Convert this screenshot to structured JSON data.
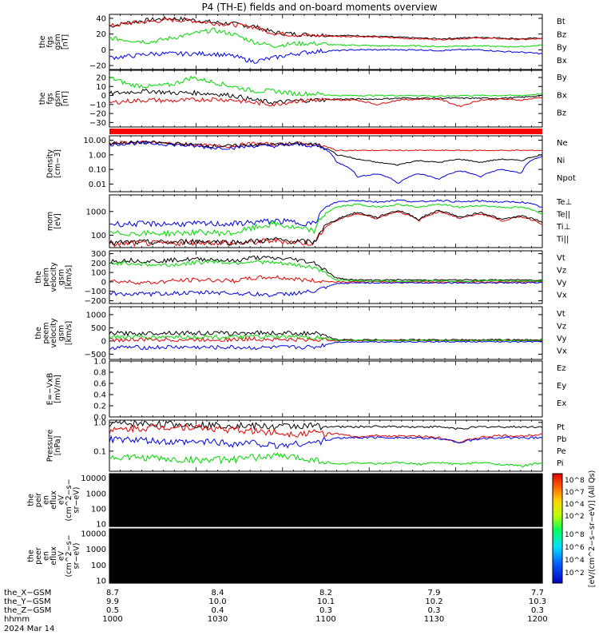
{
  "title": "P4 (TH-E) fields and on-board moments overview",
  "colors": {
    "black": "#000000",
    "red": "#e00000",
    "green": "#00d800",
    "blue": "#0000e0",
    "redbar": "#ff0000"
  },
  "chart_data": [
    {
      "type": "line",
      "panel": "fgs_gsm",
      "ylabel": [
        "the",
        "fgs",
        "gsm",
        "[nT]"
      ],
      "ticks": [
        "40",
        "20",
        "0",
        "−20"
      ],
      "ylim": [
        -25,
        45
      ],
      "series": [
        {
          "name": "Bt",
          "color": "black",
          "values": [
            30,
            35,
            38,
            40,
            38,
            35,
            33,
            30,
            22,
            20,
            19,
            18,
            18,
            17,
            16,
            15,
            14,
            15,
            16,
            15,
            14,
            15
          ]
        },
        {
          "name": "Bz",
          "color": "red",
          "values": [
            30,
            34,
            36,
            38,
            37,
            34,
            32,
            29,
            21,
            19,
            18,
            17,
            17,
            16,
            15,
            14,
            13,
            14,
            15,
            14,
            13,
            14
          ]
        },
        {
          "name": "By",
          "color": "green",
          "values": [
            15,
            12,
            10,
            15,
            20,
            25,
            20,
            10,
            5,
            8,
            8,
            6,
            6,
            5,
            5,
            5,
            4,
            5,
            5,
            4,
            4,
            6
          ]
        },
        {
          "name": "Bx",
          "color": "blue",
          "values": [
            -10,
            -8,
            -5,
            -5,
            -5,
            -5,
            -8,
            -15,
            -10,
            -5,
            -2,
            -1,
            0,
            0,
            0,
            0,
            -1,
            0,
            0,
            -2,
            -3,
            -5
          ]
        }
      ]
    },
    {
      "type": "line",
      "panel": "fgs_gsm_2",
      "ylabel": [
        "the",
        "fgs",
        "gsm",
        "[nT]"
      ],
      "ticks": [
        "20",
        "10",
        "0",
        "−10",
        "−20",
        "−30"
      ],
      "ylim": [
        -35,
        28
      ],
      "series": [
        {
          "name": "By",
          "color": "green",
          "values": [
            20,
            12,
            10,
            12,
            20,
            15,
            10,
            5,
            5,
            2,
            2,
            0,
            0,
            0,
            0,
            0,
            -1,
            0,
            0,
            0,
            0,
            2
          ]
        },
        {
          "name": "Bx",
          "color": "black",
          "values": [
            2,
            4,
            5,
            3,
            3,
            2,
            0,
            -5,
            -8,
            -6,
            -5,
            -4,
            -4,
            -4,
            -3,
            -3,
            -3,
            -3,
            -3,
            -3,
            -2,
            0
          ]
        },
        {
          "name": "Bz",
          "color": "red",
          "values": [
            -8,
            -6,
            -5,
            -6,
            -5,
            -4,
            -5,
            -8,
            -10,
            -6,
            -5,
            -5,
            -5,
            -10,
            -5,
            -4,
            -4,
            -12,
            -5,
            -4,
            -5,
            -2
          ]
        }
      ]
    },
    {
      "type": "line",
      "panel": "density",
      "ylabel": [
        "Density",
        "[cm−3]"
      ],
      "ticks": [
        "10.00",
        "1.00",
        "0.10",
        "0.01"
      ],
      "ylim": [
        0.003,
        20
      ],
      "scale": "log",
      "series": [
        {
          "name": "Ne",
          "color": "red",
          "values": [
            6,
            7,
            7,
            6,
            5,
            4,
            4,
            6,
            5,
            6,
            5,
            2,
            2,
            2,
            2,
            2,
            2,
            2,
            2,
            2,
            2,
            2
          ]
        },
        {
          "name": "Ni",
          "color": "black",
          "values": [
            6,
            7,
            7,
            6,
            5,
            4,
            4,
            5,
            5,
            6,
            5,
            1,
            0.5,
            0.3,
            0.2,
            0.4,
            0.3,
            0.5,
            0.3,
            0.5,
            0.4,
            1
          ]
        },
        {
          "name": "Npot",
          "color": "blue",
          "values": [
            5,
            6,
            6,
            5,
            4,
            3,
            3,
            4,
            4,
            5,
            4,
            0.3,
            0.03,
            0.05,
            0.01,
            0.05,
            0.02,
            0.08,
            0.03,
            0.1,
            0.05,
            0.8
          ]
        }
      ]
    },
    {
      "type": "line",
      "panel": "temperature",
      "ylabel": [
        "mom",
        "[eV]"
      ],
      "ticks": [
        "1000",
        "100"
      ],
      "ylim": [
        30,
        5000
      ],
      "scale": "log",
      "series": [
        {
          "name": "Te⊥",
          "color": "red",
          "values": [
            40,
            45,
            45,
            45,
            50,
            50,
            45,
            50,
            60,
            50,
            45,
            400,
            800,
            500,
            1000,
            400,
            1000,
            500,
            800,
            400,
            600,
            300
          ]
        },
        {
          "name": "Te||",
          "color": "black",
          "values": [
            45,
            50,
            50,
            50,
            55,
            55,
            50,
            55,
            65,
            55,
            50,
            450,
            900,
            550,
            1100,
            450,
            1100,
            550,
            900,
            450,
            650,
            350
          ]
        },
        {
          "name": "Ti⊥",
          "color": "blue",
          "values": [
            300,
            300,
            300,
            300,
            300,
            300,
            300,
            350,
            400,
            350,
            300,
            2500,
            3000,
            2500,
            3000,
            2500,
            3000,
            2500,
            2800,
            2500,
            2500,
            1500
          ]
        },
        {
          "name": "Ti||",
          "color": "green",
          "values": [
            120,
            120,
            120,
            120,
            130,
            130,
            120,
            200,
            300,
            200,
            150,
            1500,
            2000,
            1500,
            2000,
            1500,
            2000,
            1500,
            1800,
            1500,
            1500,
            800
          ]
        }
      ]
    },
    {
      "type": "line",
      "panel": "peim_velocity",
      "ylabel": [
        "the",
        "peim",
        "velocity",
        "gsm",
        "[km/s]"
      ],
      "ticks": [
        "300",
        "200",
        "100",
        "0",
        "−100",
        "−200"
      ],
      "ylim": [
        -230,
        330
      ],
      "series": [
        {
          "name": "Vt",
          "color": "black",
          "values": [
            220,
            230,
            220,
            230,
            240,
            240,
            220,
            260,
            250,
            240,
            200,
            40,
            20,
            20,
            20,
            20,
            20,
            20,
            20,
            20,
            20,
            20
          ]
        },
        {
          "name": "Vz",
          "color": "red",
          "values": [
            10,
            0,
            -10,
            10,
            20,
            20,
            10,
            40,
            50,
            30,
            10,
            0,
            0,
            0,
            0,
            0,
            0,
            0,
            0,
            0,
            0,
            0
          ]
        },
        {
          "name": "Vy",
          "color": "green",
          "values": [
            200,
            200,
            180,
            180,
            200,
            220,
            200,
            220,
            200,
            180,
            150,
            20,
            10,
            10,
            5,
            10,
            10,
            5,
            10,
            10,
            10,
            10
          ]
        },
        {
          "name": "Vx",
          "color": "blue",
          "values": [
            -120,
            -130,
            -130,
            -120,
            -120,
            -110,
            -120,
            -130,
            -140,
            -120,
            -100,
            -20,
            -10,
            -10,
            -10,
            -10,
            -10,
            -10,
            -10,
            -10,
            -10,
            -10
          ]
        }
      ]
    },
    {
      "type": "line",
      "panel": "peem_velocity",
      "ylabel": [
        "the",
        "peem",
        "velocity",
        "gsm",
        "[km/s]"
      ],
      "ticks": [
        "1000",
        "500",
        "0",
        "−500"
      ],
      "ylim": [
        -700,
        1300
      ],
      "series": [
        {
          "name": "Vt",
          "color": "black",
          "values": [
            300,
            280,
            300,
            320,
            300,
            300,
            280,
            320,
            300,
            300,
            280,
            60,
            40,
            50,
            40,
            50,
            40,
            50,
            40,
            50,
            40,
            50
          ]
        },
        {
          "name": "Vz",
          "color": "red",
          "values": [
            50,
            40,
            60,
            50,
            40,
            60,
            50,
            80,
            60,
            40,
            50,
            20,
            20,
            20,
            20,
            20,
            20,
            20,
            20,
            20,
            20,
            20
          ]
        },
        {
          "name": "Vy",
          "color": "green",
          "values": [
            150,
            150,
            140,
            160,
            150,
            150,
            140,
            160,
            150,
            150,
            140,
            30,
            20,
            20,
            20,
            20,
            20,
            20,
            20,
            20,
            20,
            20
          ]
        },
        {
          "name": "Vx",
          "color": "blue",
          "values": [
            -250,
            -240,
            -250,
            -230,
            -240,
            -250,
            -240,
            -260,
            -250,
            -240,
            -230,
            -40,
            -30,
            -30,
            -30,
            -30,
            -30,
            -30,
            -30,
            -30,
            -30,
            -30
          ]
        }
      ]
    },
    {
      "type": "line",
      "panel": "efield",
      "ylabel": [
        "E=−VxB",
        "[mV/m]"
      ],
      "ticks": [
        "1.0",
        "0.8",
        "0.6",
        "0.4",
        "0.2",
        "0.0"
      ],
      "ylim": [
        0,
        1
      ],
      "series": [
        {
          "name": "Ez",
          "color": "red",
          "values": []
        },
        {
          "name": "Ey",
          "color": "green",
          "values": []
        },
        {
          "name": "Ex",
          "color": "blue",
          "values": []
        }
      ]
    },
    {
      "type": "line",
      "panel": "pressure",
      "ylabel": [
        "Pressure",
        "[nPa]"
      ],
      "ticks": [
        "1.0",
        "0.1"
      ],
      "ylim": [
        0.02,
        1.2
      ],
      "scale": "log",
      "series": [
        {
          "name": "Pt",
          "color": "black",
          "values": [
            0.9,
            0.9,
            0.9,
            0.85,
            0.85,
            0.8,
            0.8,
            0.75,
            0.7,
            0.75,
            0.75,
            0.7,
            0.7,
            0.72,
            0.72,
            0.7,
            0.7,
            0.6,
            0.7,
            0.7,
            0.7,
            0.7
          ]
        },
        {
          "name": "Pb",
          "color": "red",
          "values": [
            0.5,
            0.6,
            0.65,
            0.7,
            0.7,
            0.6,
            0.55,
            0.5,
            0.45,
            0.4,
            0.45,
            0.4,
            0.3,
            0.35,
            0.33,
            0.33,
            0.3,
            0.2,
            0.3,
            0.35,
            0.33,
            0.4
          ]
        },
        {
          "name": "Pe",
          "color": "green",
          "values": [
            0.06,
            0.06,
            0.06,
            0.05,
            0.05,
            0.05,
            0.05,
            0.06,
            0.07,
            0.06,
            0.05,
            0.035,
            0.04,
            0.035,
            0.04,
            0.035,
            0.04,
            0.035,
            0.04,
            0.035,
            0.03,
            0.04
          ]
        },
        {
          "name": "Pi",
          "color": "blue",
          "values": [
            0.25,
            0.25,
            0.22,
            0.2,
            0.2,
            0.22,
            0.18,
            0.2,
            0.15,
            0.18,
            0.2,
            0.28,
            0.3,
            0.3,
            0.3,
            0.28,
            0.28,
            0.2,
            0.27,
            0.3,
            0.28,
            0.3
          ]
        }
      ]
    },
    {
      "type": "heatmap",
      "panel": "peir_eflux",
      "ylabel": [
        "the",
        "peir",
        "en",
        "eflux",
        "eV",
        "(cm^2−s−",
        "sr−eV)"
      ],
      "ticks": [
        "10000",
        "1000",
        "100",
        "10"
      ],
      "ylim": [
        7,
        20000
      ],
      "scale": "log"
    },
    {
      "type": "heatmap",
      "panel": "peer_eflux",
      "ylabel": [
        "the",
        "peer",
        "en",
        "eflux",
        "eV",
        "(cm^2−s−",
        "sr−eV)"
      ],
      "ticks": [
        "10000",
        "1000",
        "100",
        "10"
      ],
      "ylim": [
        7,
        20000
      ],
      "scale": "log"
    }
  ],
  "colorbar": {
    "label": "[eV/(cm^2−s−sr−eV)] (All Qs)",
    "ticks1": [
      "10^8",
      "10^7",
      "10^4",
      "10^2"
    ],
    "ticks2": [
      "10^8",
      "10^6",
      "10^4",
      "10^2"
    ]
  },
  "xaxis": {
    "rows": [
      {
        "label": "the_X−GSM",
        "values": [
          "8.7",
          "8.4",
          "8.2",
          "7.9",
          "7.7"
        ]
      },
      {
        "label": "the_Y−GSM",
        "values": [
          "9.9",
          "10.0",
          "10.1",
          "10.2",
          "10.3"
        ]
      },
      {
        "label": "the_Z−GSM",
        "values": [
          "0.5",
          "0.4",
          "0.3",
          "0.3",
          "0.3"
        ]
      },
      {
        "label": "hhmm",
        "values": [
          "1000",
          "1030",
          "1100",
          "1130",
          "1200"
        ]
      }
    ],
    "date": "2024 Mar 14"
  }
}
